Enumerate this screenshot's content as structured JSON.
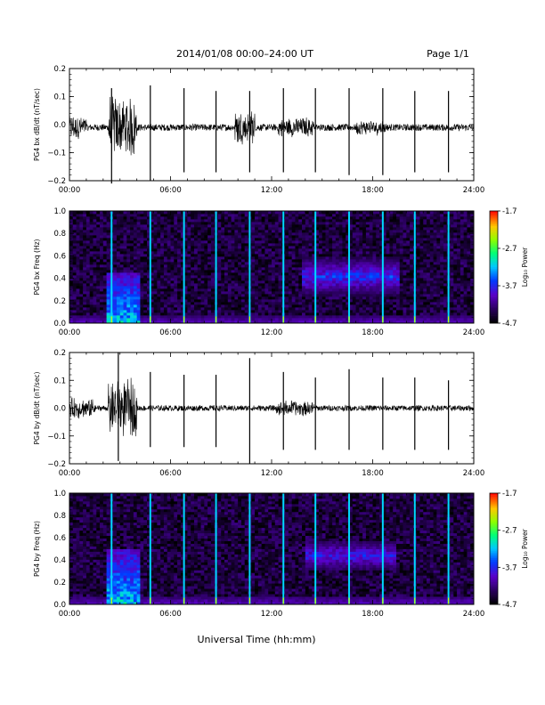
{
  "header": {
    "title": "2014/01/08  00:00–24:00 UT",
    "page": "Page 1/1"
  },
  "xlabel": "Universal Time (hh:mm)",
  "x_ticks": [
    "00:00",
    "06:00",
    "12:00",
    "18:00",
    "24:00"
  ],
  "chart_data": [
    {
      "type": "line",
      "name": "bx-timeseries",
      "ylabel": "PG4 bx dB/dt (nT/sec)",
      "x_units": "hours UT",
      "xlim": [
        0,
        24
      ],
      "ylim": [
        -0.2,
        0.2
      ],
      "y_ticks": [
        "0.2",
        "0.1",
        "0.0",
        "−0.1",
        "−0.2"
      ],
      "y_tick_values": [
        0.2,
        0.1,
        0.0,
        -0.1,
        -0.2
      ],
      "baseline": -0.01,
      "noise_level": 0.012,
      "bursts": [
        {
          "start": 0.0,
          "end": 1.0,
          "amplitude": 0.05
        },
        {
          "start": 2.3,
          "end": 4.0,
          "amplitude": 0.13
        },
        {
          "start": 9.8,
          "end": 11.0,
          "amplitude": 0.07
        },
        {
          "start": 12.4,
          "end": 14.5,
          "amplitude": 0.04
        },
        {
          "start": 17.0,
          "end": 18.8,
          "amplitude": 0.03
        }
      ],
      "spikes": [
        {
          "t": 2.5,
          "max": 0.13,
          "min": -0.21
        },
        {
          "t": 4.8,
          "max": 0.14,
          "min": -0.2
        },
        {
          "t": 6.8,
          "max": 0.13,
          "min": -0.17
        },
        {
          "t": 8.7,
          "max": 0.12,
          "min": -0.17
        },
        {
          "t": 10.7,
          "max": 0.12,
          "min": -0.17
        },
        {
          "t": 12.7,
          "max": 0.13,
          "min": -0.17
        },
        {
          "t": 14.6,
          "max": 0.13,
          "min": -0.17
        },
        {
          "t": 16.6,
          "max": 0.13,
          "min": -0.18
        },
        {
          "t": 18.6,
          "max": 0.13,
          "min": -0.18
        },
        {
          "t": 20.5,
          "max": 0.12,
          "min": -0.17
        },
        {
          "t": 22.5,
          "max": 0.12,
          "min": -0.17
        }
      ]
    },
    {
      "type": "heatmap",
      "name": "bx-spectrogram",
      "ylabel": "PG4 bx Freq (Hz)",
      "xlim": [
        0,
        24
      ],
      "ylim": [
        0,
        1.0
      ],
      "y_ticks": [
        "1.0",
        "0.8",
        "0.6",
        "0.4",
        "0.2",
        "0.0"
      ],
      "y_tick_values": [
        1.0,
        0.8,
        0.6,
        0.4,
        0.2,
        0.0
      ],
      "colorbar": {
        "label": "Log₁₀ Power",
        "range": [
          -4.7,
          -1.7
        ],
        "ticks": [
          "-1.7",
          "-2.7",
          "-3.7",
          "-4.7"
        ],
        "tick_values": [
          -1.7,
          -2.7,
          -3.7,
          -4.7
        ]
      },
      "background_level": -4.45,
      "spikes": [
        2.5,
        4.8,
        6.8,
        8.7,
        10.7,
        12.7,
        14.6,
        16.6,
        18.6,
        20.5,
        22.5
      ],
      "features": [
        {
          "kind": "low-freq band",
          "t0": 0,
          "t1": 24,
          "f0": 0,
          "f1": 0.06,
          "level": -3.9
        },
        {
          "kind": "broadband burst",
          "t0": 2.2,
          "t1": 4.2,
          "f0": 0,
          "f1": 0.45,
          "level": -3.0
        },
        {
          "kind": "pc1 emission",
          "t0": 13.8,
          "t1": 19.5,
          "f0": 0.25,
          "f1": 0.6,
          "level": -3.5,
          "center": 0.42
        }
      ]
    },
    {
      "type": "line",
      "name": "by-timeseries",
      "ylabel": "PG4 by dB/dt (nT/sec)",
      "x_units": "hours UT",
      "xlim": [
        0,
        24
      ],
      "ylim": [
        -0.2,
        0.2
      ],
      "y_ticks": [
        "0.2",
        "0.1",
        "0.0",
        "−0.1",
        "−0.2"
      ],
      "y_tick_values": [
        0.2,
        0.1,
        0.0,
        -0.1,
        -0.2
      ],
      "baseline": 0.0,
      "noise_level": 0.01,
      "bursts": [
        {
          "start": 0.0,
          "end": 1.5,
          "amplitude": 0.04
        },
        {
          "start": 2.3,
          "end": 4.0,
          "amplitude": 0.11
        },
        {
          "start": 12.3,
          "end": 14.5,
          "amplitude": 0.03
        }
      ],
      "spikes": [
        {
          "t": 2.9,
          "max": 0.2,
          "min": -0.19
        },
        {
          "t": 4.8,
          "max": 0.13,
          "min": -0.14
        },
        {
          "t": 6.8,
          "max": 0.12,
          "min": -0.14
        },
        {
          "t": 8.7,
          "max": 0.12,
          "min": -0.14
        },
        {
          "t": 10.7,
          "max": 0.18,
          "min": -0.2
        },
        {
          "t": 12.7,
          "max": 0.13,
          "min": -0.15
        },
        {
          "t": 14.6,
          "max": 0.11,
          "min": -0.15
        },
        {
          "t": 16.6,
          "max": 0.14,
          "min": -0.15
        },
        {
          "t": 18.6,
          "max": 0.11,
          "min": -0.15
        },
        {
          "t": 20.5,
          "max": 0.11,
          "min": -0.15
        },
        {
          "t": 22.5,
          "max": 0.1,
          "min": -0.15
        }
      ]
    },
    {
      "type": "heatmap",
      "name": "by-spectrogram",
      "ylabel": "PG4 by Freq (Hz)",
      "xlim": [
        0,
        24
      ],
      "ylim": [
        0,
        1.0
      ],
      "y_ticks": [
        "1.0",
        "0.8",
        "0.6",
        "0.4",
        "0.2",
        "0.0"
      ],
      "y_tick_values": [
        1.0,
        0.8,
        0.6,
        0.4,
        0.2,
        0.0
      ],
      "colorbar": {
        "label": "Log₁₀ Power",
        "range": [
          -4.7,
          -1.7
        ],
        "ticks": [
          "-1.7",
          "-2.7",
          "-3.7",
          "-4.7"
        ],
        "tick_values": [
          -1.7,
          -2.7,
          -3.7,
          -4.7
        ]
      },
      "background_level": -4.45,
      "spikes": [
        2.5,
        4.8,
        6.8,
        8.7,
        10.7,
        12.7,
        14.6,
        16.6,
        18.6,
        20.5,
        22.5
      ],
      "features": [
        {
          "kind": "low-freq band",
          "t0": 0,
          "t1": 24,
          "f0": 0,
          "f1": 0.07,
          "level": -3.9
        },
        {
          "kind": "broadband burst",
          "t0": 2.2,
          "t1": 4.2,
          "f0": 0,
          "f1": 0.5,
          "level": -3.0
        },
        {
          "kind": "pc1 emission",
          "t0": 14.0,
          "t1": 19.3,
          "f0": 0.3,
          "f1": 0.58,
          "level": -3.6,
          "center": 0.44
        }
      ]
    }
  ]
}
